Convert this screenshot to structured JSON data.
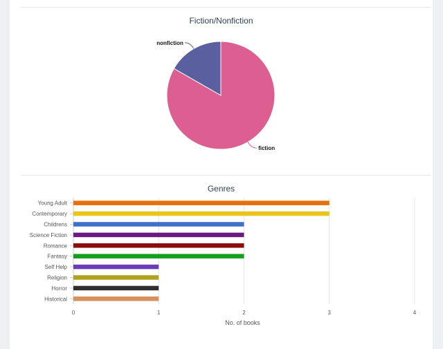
{
  "chart_data": [
    {
      "type": "pie",
      "title": "Fiction/Nonfiction",
      "slices": [
        {
          "label": "fiction",
          "value": 83.3,
          "color": "#dd5e91"
        },
        {
          "label": "nonfiction",
          "value": 16.7,
          "color": "#5a5f9f"
        }
      ]
    },
    {
      "type": "bar",
      "orientation": "horizontal",
      "title": "Genres",
      "xlabel": "No. of books",
      "ylabel": "",
      "xlim": [
        0,
        4
      ],
      "xticks": [
        "0",
        "1",
        "2",
        "3",
        "4"
      ],
      "grid": true,
      "categories": [
        "Young Adult",
        "Contemporary",
        "Childrens",
        "Science Fiction",
        "Romance",
        "Fantasy",
        "Self Help",
        "Religion",
        "Horror",
        "Historical"
      ],
      "values": [
        3,
        3,
        2,
        2,
        2,
        2,
        1,
        1,
        1,
        1
      ],
      "colors": [
        "#e8700b",
        "#e9c41b",
        "#3e6fc9",
        "#6a1b7f",
        "#8d0c0c",
        "#149f1f",
        "#6a3cb8",
        "#b0a21c",
        "#2e2e2e",
        "#d5925f"
      ]
    }
  ]
}
